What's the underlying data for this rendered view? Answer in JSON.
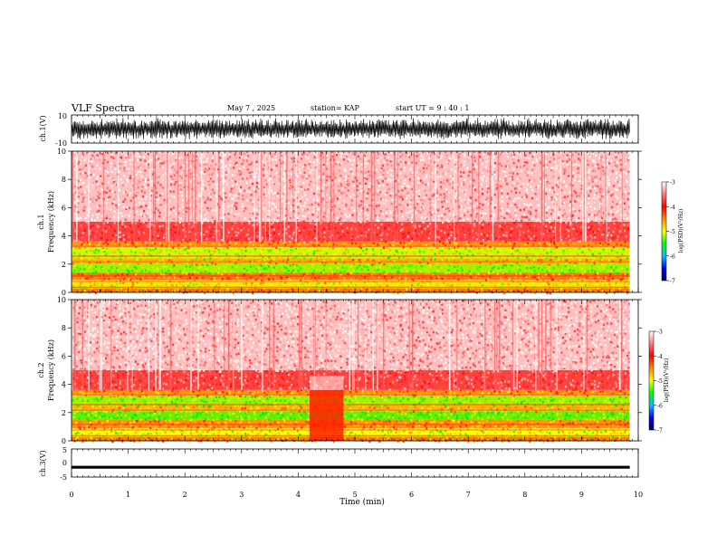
{
  "header": {
    "title": "VLF Spectra",
    "date": "May 7  , 2025",
    "station": "station= KAP",
    "start": "start  UT =   9 : 40 : 1"
  },
  "chart_data": [
    {
      "type": "line",
      "panel": "ch1-waveform",
      "ylabel": "ch.1(V)",
      "ylim": [
        -10,
        10
      ],
      "yticks": [
        "10",
        "-10"
      ],
      "xlim": [
        0,
        9.85
      ],
      "description_values": "dense oscillating waveform spanning roughly -8 to 8 V"
    },
    {
      "type": "heatmap",
      "panel": "ch1-spectrogram",
      "ylabel": "ch.1\nFrequency (kHz)",
      "ylabel_lines": [
        "ch.1",
        "Frequency (kHz)"
      ],
      "ylim": [
        0,
        10
      ],
      "yticks": [
        "0",
        "2",
        "4",
        "6",
        "8",
        "10"
      ],
      "xlim": [
        0,
        9.85
      ],
      "colorbar": {
        "label": "log(PSD)(V²/Hz)",
        "range": [
          -7,
          -3
        ],
        "ticks": [
          "-3",
          "-4",
          "-5",
          "-6",
          "-7"
        ]
      },
      "bands_khz": [
        {
          "from": 0.0,
          "to": 0.3,
          "level": -4.2
        },
        {
          "from": 0.3,
          "to": 0.9,
          "level": -4.6
        },
        {
          "from": 0.9,
          "to": 1.4,
          "level": -4.2
        },
        {
          "from": 1.4,
          "to": 2.0,
          "level": -4.9
        },
        {
          "from": 2.0,
          "to": 2.4,
          "level": -4.4
        },
        {
          "from": 2.4,
          "to": 3.2,
          "level": -4.8
        },
        {
          "from": 3.2,
          "to": 3.6,
          "level": -4.3
        },
        {
          "from": 3.6,
          "to": 5.0,
          "level": -3.6
        },
        {
          "from": 5.0,
          "to": 10.0,
          "level": -3.2
        }
      ]
    },
    {
      "type": "heatmap",
      "panel": "ch2-spectrogram",
      "ylabel": "ch.2\nFrequency (kHz)",
      "ylabel_lines": [
        "ch.2",
        "Frequency (kHz)"
      ],
      "ylim": [
        0,
        10
      ],
      "yticks": [
        "0",
        "2",
        "4",
        "6",
        "8",
        "10"
      ],
      "xlim": [
        0,
        9.85
      ],
      "colorbar": {
        "label": "log(PSD)(V²/Hz)",
        "range": [
          -7,
          -3
        ],
        "ticks": [
          "-3",
          "-4",
          "-5",
          "-6",
          "-7"
        ]
      },
      "bands_khz": [
        {
          "from": 0.0,
          "to": 0.3,
          "level": -4.2
        },
        {
          "from": 0.3,
          "to": 0.9,
          "level": -4.7
        },
        {
          "from": 0.9,
          "to": 1.5,
          "level": -4.3
        },
        {
          "from": 1.5,
          "to": 2.1,
          "level": -5.0
        },
        {
          "from": 2.1,
          "to": 2.5,
          "level": -4.4
        },
        {
          "from": 2.5,
          "to": 3.2,
          "level": -4.9
        },
        {
          "from": 3.2,
          "to": 3.6,
          "level": -4.3
        },
        {
          "from": 3.6,
          "to": 5.0,
          "level": -3.6
        },
        {
          "from": 5.0,
          "to": 10.0,
          "level": -3.2
        }
      ],
      "quiet_interval_min": [
        4.2,
        4.8
      ]
    },
    {
      "type": "line",
      "panel": "ch3-waveform",
      "ylabel": "ch.3(V)",
      "ylim": [
        -5,
        5
      ],
      "yticks": [
        "5",
        "0",
        "-5"
      ],
      "xlim": [
        0,
        9.85
      ],
      "xlabel": "Time (min)",
      "xticks": [
        "0",
        "1",
        "2",
        "3",
        "4",
        "5",
        "6",
        "7",
        "8",
        "9",
        "10"
      ],
      "description_values": "flat band centred near -1.5 V"
    }
  ]
}
